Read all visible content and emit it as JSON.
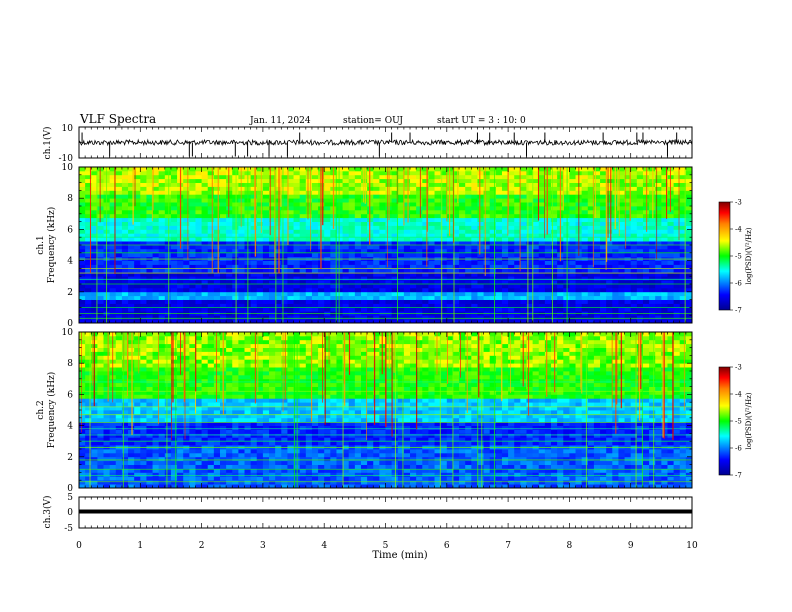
{
  "header": {
    "title": "VLF Spectra",
    "date": "Jan. 11, 2024",
    "station": "station= OUJ",
    "start": "start  UT =   3 : 10: 0"
  },
  "chart_data": [
    {
      "type": "line",
      "panel": "ch1-waveform",
      "ylabel": "ch.1(V)",
      "ylim": [
        -10,
        10
      ],
      "yticks": [
        "10",
        "-10"
      ],
      "xlim": [
        0,
        10
      ]
    },
    {
      "type": "heatmap",
      "panel": "ch1-spectrogram",
      "ylabel_line1": "ch.1",
      "ylabel_line2": "Frequency (kHz)",
      "ylim": [
        0,
        10
      ],
      "yticks": [
        "0",
        "2",
        "4",
        "6",
        "8",
        "10"
      ],
      "xlim": [
        0,
        10
      ],
      "colorbar": {
        "label": "log(PSD)(V²/Hz)",
        "range": [
          -7,
          -3
        ],
        "ticks": [
          "-3",
          "-4",
          "-5",
          "-6",
          "-7"
        ]
      }
    },
    {
      "type": "heatmap",
      "panel": "ch2-spectrogram",
      "ylabel_line1": "ch.2",
      "ylabel_line2": "Frequency (kHz)",
      "ylim": [
        0,
        10
      ],
      "yticks": [
        "0",
        "2",
        "4",
        "6",
        "8",
        "10"
      ],
      "xlim": [
        0,
        10
      ],
      "colorbar": {
        "label": "log(PSD)(V²/Hz)",
        "range": [
          -7,
          -3
        ],
        "ticks": [
          "-3",
          "-4",
          "-5",
          "-6",
          "-7"
        ]
      }
    },
    {
      "type": "line",
      "panel": "ch3-waveform",
      "ylabel": "ch.3(V)",
      "ylim": [
        -5,
        5
      ],
      "yticks": [
        "5",
        "0",
        "-5"
      ],
      "xlim": [
        0,
        10
      ],
      "xlabel": "Time (min)",
      "xticks": [
        "0",
        "1",
        "2",
        "3",
        "4",
        "5",
        "6",
        "7",
        "8",
        "9",
        "10"
      ]
    }
  ],
  "colors": {
    "jet": [
      "#00008f",
      "#0000ff",
      "#00ffff",
      "#00ff00",
      "#ffff00",
      "#ff7f00",
      "#ff0000",
      "#7f0000"
    ],
    "waveform": "#000000"
  }
}
